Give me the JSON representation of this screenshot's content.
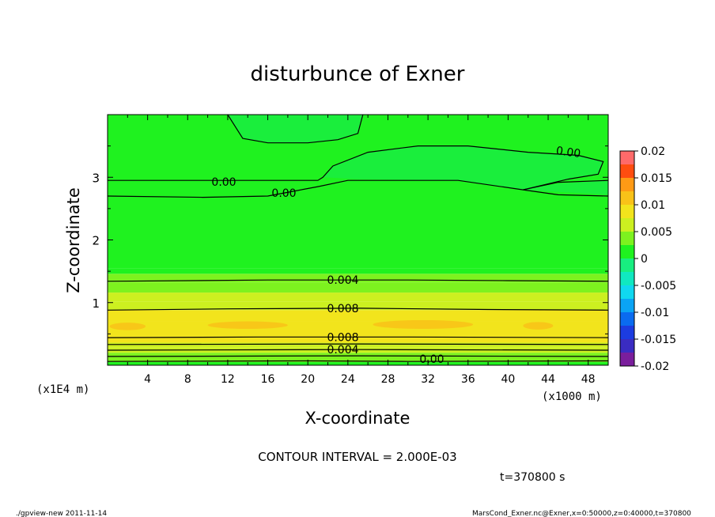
{
  "chart_data": {
    "type": "heatmap",
    "title": "disturbunce of Exner",
    "xlabel": "X-coordinate",
    "ylabel": "Z-coordinate",
    "x_unit": "(x1000 m)",
    "y_unit": "(x1E4 m)",
    "xlim": [
      0,
      50
    ],
    "ylim": [
      0,
      4
    ],
    "x_ticks": [
      "4",
      "8",
      "12",
      "16",
      "20",
      "24",
      "28",
      "32",
      "36",
      "40",
      "44",
      "48"
    ],
    "y_ticks": [
      "1",
      "2",
      "3"
    ],
    "colorbar": {
      "ticks": [
        "0.02",
        "0.015",
        "0.01",
        "0.005",
        "0",
        "-0.005",
        "-0.01",
        "-0.015",
        "-0.02"
      ],
      "range": [
        -0.02,
        0.02
      ],
      "interval": 0.0025
    },
    "contour_labels": [
      "0.00",
      "0.00",
      "0.00",
      "0.004",
      "0.008",
      "0.008",
      "0.004",
      "0.00"
    ],
    "contour_interval_text": "CONTOUR INTERVAL = 2.000E-03",
    "time_text": "t=370800 s",
    "footer_left": "./gpview-new  2011-11-14",
    "footer_right": "MarsCond_Exner.nc@Exner,x=0:50000,z=0:40000,t=370800",
    "bands": [
      {
        "z0": 0.0,
        "z1": 0.05,
        "value": 0.001
      },
      {
        "z0": 0.05,
        "z1": 0.12,
        "value": 0.0035
      },
      {
        "z0": 0.12,
        "z1": 0.2,
        "value": 0.0045
      },
      {
        "z0": 0.2,
        "z1": 0.28,
        "value": 0.0055
      },
      {
        "z0": 0.28,
        "z1": 0.36,
        "value": 0.0065
      },
      {
        "z0": 0.36,
        "z1": 0.46,
        "value": 0.0075
      },
      {
        "z0": 0.46,
        "z1": 0.7,
        "value": 0.0092
      },
      {
        "z0": 0.7,
        "z1": 0.88,
        "value": 0.0082
      },
      {
        "z0": 0.88,
        "z1": 1.02,
        "value": 0.0068
      },
      {
        "z0": 1.02,
        "z1": 1.16,
        "value": 0.0055
      },
      {
        "z0": 1.16,
        "z1": 1.32,
        "value": 0.0045
      },
      {
        "z0": 1.32,
        "z1": 1.46,
        "value": 0.0032
      },
      {
        "z0": 1.46,
        "z1": 1.55,
        "value": 0.0018
      },
      {
        "z0": 1.55,
        "z1": 4.0,
        "value": 0.0003
      }
    ],
    "negative_regions": [
      {
        "label": "upper-left lobe",
        "value": -0.0005,
        "points": [
          [
            12.0,
            4.0
          ],
          [
            13.5,
            3.62
          ],
          [
            16.0,
            3.55
          ],
          [
            20.0,
            3.55
          ],
          [
            23.0,
            3.6
          ],
          [
            25.0,
            3.7
          ],
          [
            25.5,
            4.0
          ]
        ]
      },
      {
        "label": "right lobe",
        "value": -0.0005,
        "points": [
          [
            21.5,
            3.0
          ],
          [
            22.5,
            3.18
          ],
          [
            26.0,
            3.4
          ],
          [
            31.0,
            3.5
          ],
          [
            36.0,
            3.5
          ],
          [
            42.0,
            3.4
          ],
          [
            47.0,
            3.35
          ],
          [
            49.5,
            3.25
          ],
          [
            49.0,
            3.05
          ],
          [
            46.0,
            2.97
          ],
          [
            41.5,
            2.8
          ],
          [
            45.0,
            2.9
          ],
          [
            50.0,
            2.95
          ],
          [
            50.0,
            2.72
          ],
          [
            41.5,
            2.8
          ],
          [
            35.0,
            2.95
          ],
          [
            25.0,
            2.97
          ]
        ]
      }
    ],
    "contours": [
      {
        "level": 0.0,
        "points": [
          [
            12.0,
            4.0
          ],
          [
            13.5,
            3.62
          ],
          [
            16.0,
            3.55
          ],
          [
            20.0,
            3.55
          ],
          [
            23.0,
            3.6
          ],
          [
            25.0,
            3.7
          ],
          [
            25.5,
            4.0
          ]
        ]
      },
      {
        "level": 0.0,
        "points": [
          [
            0.0,
            2.95
          ],
          [
            9.5,
            2.95
          ],
          [
            14.0,
            2.95
          ],
          [
            21.0,
            2.95
          ],
          [
            21.5,
            3.0
          ],
          [
            22.5,
            3.18
          ],
          [
            26.0,
            3.4
          ],
          [
            31.0,
            3.5
          ],
          [
            36.0,
            3.5
          ],
          [
            42.0,
            3.4
          ],
          [
            44.0,
            3.38
          ],
          [
            47.0,
            3.35
          ],
          [
            49.5,
            3.25
          ],
          [
            49.0,
            3.05
          ],
          [
            46.0,
            2.97
          ],
          [
            41.5,
            2.8
          ]
        ]
      },
      {
        "level": 0.0,
        "points": [
          [
            0.0,
            2.7
          ],
          [
            9.5,
            2.68
          ],
          [
            16.0,
            2.7
          ],
          [
            21.0,
            2.85
          ],
          [
            24.0,
            2.95
          ],
          [
            35.0,
            2.95
          ],
          [
            41.5,
            2.8
          ],
          [
            45.0,
            2.72
          ],
          [
            50.0,
            2.7
          ]
        ]
      },
      {
        "level": 0.0,
        "points": [
          [
            41.5,
            2.8
          ],
          [
            45.0,
            2.92
          ],
          [
            50.0,
            2.95
          ]
        ]
      },
      {
        "level": 0.004,
        "points": [
          [
            0.0,
            1.34
          ],
          [
            16.0,
            1.36
          ],
          [
            30.0,
            1.36
          ],
          [
            40.0,
            1.35
          ],
          [
            50.0,
            1.34
          ]
        ]
      },
      {
        "level": 0.008,
        "points": [
          [
            0.0,
            0.88
          ],
          [
            12.0,
            0.9
          ],
          [
            25.0,
            0.91
          ],
          [
            38.0,
            0.89
          ],
          [
            50.0,
            0.88
          ]
        ]
      },
      {
        "level": 0.008,
        "points": [
          [
            0.0,
            0.44
          ],
          [
            15.0,
            0.45
          ],
          [
            30.0,
            0.45
          ],
          [
            50.0,
            0.44
          ]
        ]
      },
      {
        "level": 0.006,
        "points": [
          [
            0.0,
            0.33
          ],
          [
            25.0,
            0.34
          ],
          [
            50.0,
            0.33
          ]
        ]
      },
      {
        "level": 0.004,
        "points": [
          [
            0.0,
            0.24
          ],
          [
            25.0,
            0.25
          ],
          [
            50.0,
            0.24
          ]
        ]
      },
      {
        "level": 0.002,
        "points": [
          [
            0.0,
            0.14
          ],
          [
            25.0,
            0.15
          ],
          [
            50.0,
            0.14
          ]
        ]
      },
      {
        "level": 0.0,
        "points": [
          [
            0.0,
            0.06
          ],
          [
            20.0,
            0.07
          ],
          [
            30.0,
            0.06
          ],
          [
            50.0,
            0.07
          ]
        ]
      }
    ],
    "warm_blobs": [
      {
        "x": 2.0,
        "z": 0.62,
        "rx": 1.8,
        "rz": 0.06
      },
      {
        "x": 14.0,
        "z": 0.64,
        "rx": 4.0,
        "rz": 0.06
      },
      {
        "x": 31.5,
        "z": 0.65,
        "rx": 5.0,
        "rz": 0.07
      },
      {
        "x": 43.0,
        "z": 0.63,
        "rx": 1.5,
        "rz": 0.06
      }
    ],
    "grid": false
  }
}
